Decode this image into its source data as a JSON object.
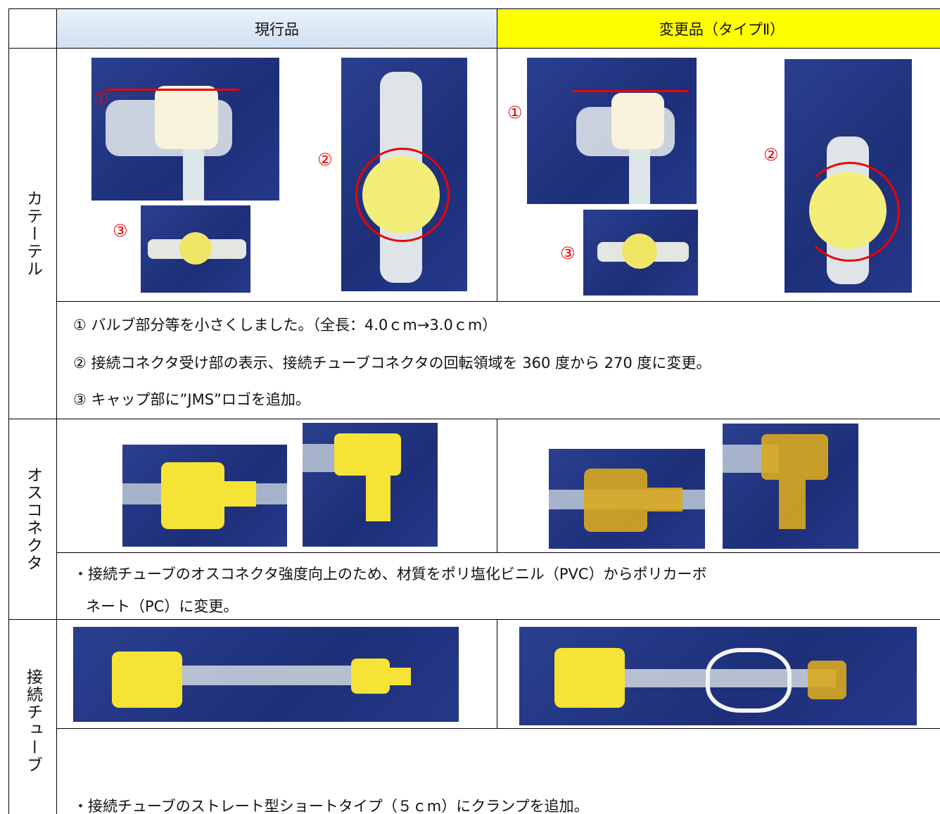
{
  "header": {
    "current": "現行品",
    "changed": "変更品（タイプⅡ）"
  },
  "rows": [
    {
      "label": "カテーテル",
      "current_markers": [
        "①",
        "②",
        "③"
      ],
      "changed_markers": [
        "①",
        "②",
        "③"
      ],
      "notes": [
        "①  バルブ部分等を小さくしました。（全長：4.0ｃm→3.0ｃm）",
        "②  接続コネクタ受け部の表示、接続チューブコネクタの回転領域を 360 度から 270 度に変更。",
        "③  キャップ部に”JMS”ロゴを追加。"
      ]
    },
    {
      "label": "オスコネクタ",
      "notes": [
        "・接続チューブのオスコネクタ強度向上のため、材質をポリ塩化ビニル（PVC）からポリカーボ",
        "ネート（PC）に変更。"
      ]
    },
    {
      "label": "接続チューブ",
      "notes": [
        "・接続チューブのストレート型ショートタイプ（５ｃm）にクランプを追加。"
      ]
    }
  ]
}
